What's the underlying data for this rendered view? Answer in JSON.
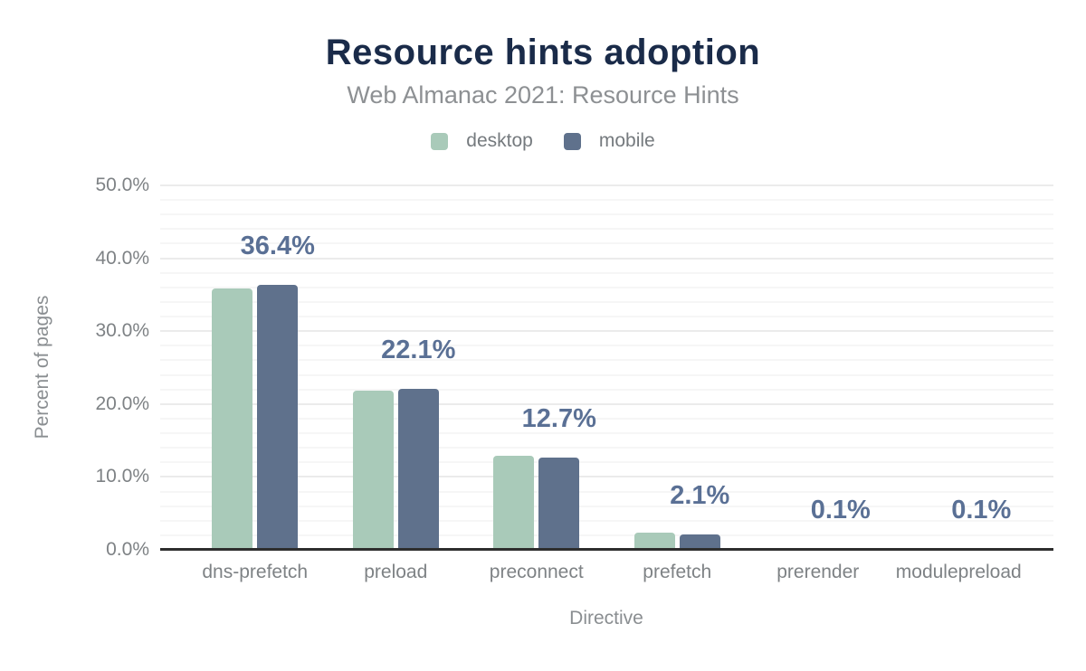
{
  "chart_data": {
    "type": "bar",
    "title": "Resource hints adoption",
    "subtitle": "Web Almanac 2021: Resource Hints",
    "xlabel": "Directive",
    "ylabel": "Percent of pages",
    "categories": [
      "dns-prefetch",
      "preload",
      "preconnect",
      "prefetch",
      "prerender",
      "modulepreload"
    ],
    "series": [
      {
        "name": "desktop",
        "color": "#a9cab9",
        "values": [
          35.9,
          21.8,
          12.9,
          2.3,
          0.1,
          0.1
        ]
      },
      {
        "name": "mobile",
        "color": "#5f718c",
        "values": [
          36.4,
          22.1,
          12.7,
          2.1,
          0.1,
          0.1
        ]
      }
    ],
    "bar_labels": [
      "36.4%",
      "22.1%",
      "12.7%",
      "2.1%",
      "0.1%",
      "0.1%"
    ],
    "labeled_series": "mobile",
    "ylim": [
      0,
      50
    ],
    "yticks": [
      "0.0%",
      "10.0%",
      "20.0%",
      "30.0%",
      "40.0%",
      "50.0%"
    ],
    "ytick_step": 10,
    "minor_gridline_step": 2,
    "grid": "on",
    "legend_position": "top",
    "colors": {
      "title": "#1a2b49",
      "subtitle": "#8d9093",
      "value_label": "#5a7095",
      "tick_text": "#7e8285",
      "axis_title_text": "#8a8e91",
      "legend_text": "#757a7e",
      "axis_line": "#2e2e2e",
      "gridline_major": "#ebebeb",
      "gridline_minor": "#f6f6f6"
    }
  }
}
